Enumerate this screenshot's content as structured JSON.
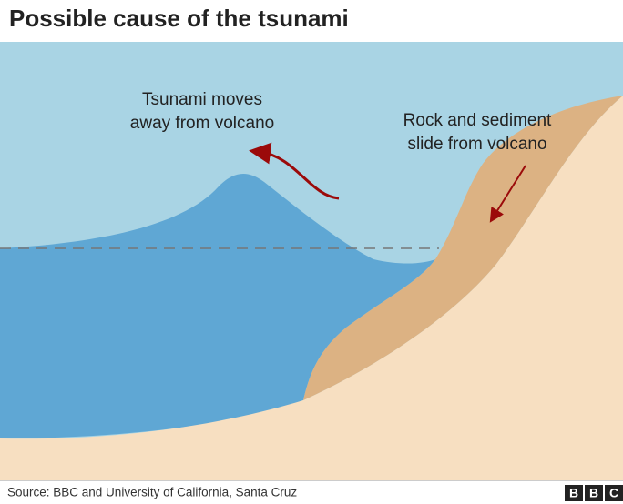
{
  "header": {
    "title": "Possible cause of the tsunami"
  },
  "annotations": [
    {
      "lines": [
        "Tsunami moves",
        "away from volcano"
      ]
    },
    {
      "lines": [
        "Rock and sediment",
        "slide from volcano"
      ]
    }
  ],
  "footer": {
    "source": "Source: BBC and University of California, Santa Cruz",
    "logo": [
      "B",
      "B",
      "C"
    ]
  }
}
